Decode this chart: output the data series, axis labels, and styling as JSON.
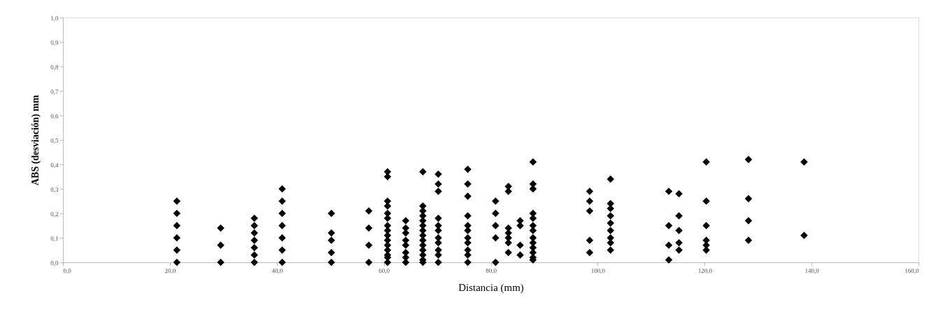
{
  "chart_data": {
    "type": "scatter",
    "xlabel": "Distancia (mm)",
    "ylabel": "ABS (desviación) mm",
    "marker": "diamond",
    "grid": false,
    "xlim": [
      0,
      160
    ],
    "ylim": [
      0,
      1
    ],
    "xticks": [
      {
        "value": 0,
        "label": "0,0"
      },
      {
        "value": 20,
        "label": "20,0"
      },
      {
        "value": 40,
        "label": "40,0"
      },
      {
        "value": 60,
        "label": "60,0"
      },
      {
        "value": 80,
        "label": "80,0"
      },
      {
        "value": 100,
        "label": "100,0"
      },
      {
        "value": 120,
        "label": "120,0"
      },
      {
        "value": 140,
        "label": "140,0"
      },
      {
        "value": 160,
        "label": "160,0"
      }
    ],
    "yticks": [
      {
        "value": 0,
        "label": "0,0"
      },
      {
        "value": 0.1,
        "label": "0,1"
      },
      {
        "value": 0.2,
        "label": "0,2"
      },
      {
        "value": 0.3,
        "label": "0,3"
      },
      {
        "value": 0.4,
        "label": "0,4"
      },
      {
        "value": 0.5,
        "label": "0,5"
      },
      {
        "value": 0.6,
        "label": "0,6"
      },
      {
        "value": 0.7,
        "label": "0,7"
      },
      {
        "value": 0.8,
        "label": "0,8"
      },
      {
        "value": 0.9,
        "label": "0,9"
      },
      {
        "value": 1,
        "label": "1,0"
      }
    ],
    "series": [
      {
        "color": "#000000",
        "x": [
          21.3,
          21.3,
          21.3,
          21.3,
          21.3,
          21.3,
          29.5,
          29.5,
          29.5,
          35.8,
          35.8,
          35.8,
          35.8,
          35.8,
          35.8,
          35.8,
          41,
          41,
          41,
          41,
          41,
          41,
          41,
          50.2,
          50.2,
          50.2,
          50.2,
          50.2,
          57.2,
          57.2,
          57.2,
          57.2,
          60.7,
          60.7,
          60.7,
          60.7,
          60.7,
          60.7,
          60.7,
          60.7,
          60.7,
          60.7,
          60.7,
          60.7,
          60.7,
          60.7,
          60.7,
          64.1,
          64.1,
          64.1,
          64.1,
          64.1,
          64.1,
          64.1,
          64.1,
          67.3,
          67.3,
          67.3,
          67.3,
          67.3,
          67.3,
          67.3,
          67.3,
          67.3,
          67.3,
          67.3,
          67.3,
          67.3,
          67.3,
          70.2,
          70.2,
          70.2,
          70.2,
          70.2,
          70.2,
          70.2,
          70.2,
          70.2,
          70.2,
          70.2,
          75.7,
          75.7,
          75.7,
          75.7,
          75.7,
          75.7,
          75.7,
          75.7,
          75.7,
          75.7,
          75.7,
          80.9,
          80.9,
          80.9,
          80.9,
          80.9,
          83.3,
          83.3,
          83.3,
          83.3,
          83.3,
          83.3,
          83.3,
          85.5,
          85.5,
          85.5,
          85.5,
          87.9,
          87.9,
          87.9,
          87.9,
          87.9,
          87.9,
          87.9,
          87.9,
          87.9,
          87.9,
          87.9,
          87.9,
          87.9,
          98.5,
          98.5,
          98.5,
          98.5,
          98.5,
          102.4,
          102.4,
          102.4,
          102.4,
          102.4,
          102.4,
          102.4,
          102.4,
          102.4,
          113.3,
          113.3,
          113.3,
          113.3,
          115.2,
          115.2,
          115.2,
          115.2,
          115.2,
          120.3,
          120.3,
          120.3,
          120.3,
          120.3,
          120.3,
          128.2,
          128.2,
          128.2,
          128.2,
          138.6,
          138.6
        ],
        "values": [
          0.25,
          0.2,
          0.15,
          0.1,
          0.05,
          0,
          0.14,
          0.07,
          0,
          0.18,
          0.15,
          0.12,
          0.09,
          0.06,
          0.03,
          0,
          0.3,
          0.25,
          0.2,
          0.15,
          0.1,
          0.05,
          0,
          0.2,
          0.12,
          0.09,
          0.04,
          0,
          0.21,
          0.14,
          0.07,
          0,
          0.37,
          0.35,
          0.25,
          0.23,
          0.2,
          0.18,
          0.15,
          0.13,
          0.11,
          0.09,
          0.07,
          0.05,
          0.03,
          0.02,
          0,
          0.17,
          0.14,
          0.12,
          0.09,
          0.07,
          0.04,
          0.02,
          0,
          0.37,
          0.23,
          0.21,
          0.19,
          0.17,
          0.15,
          0.13,
          0.11,
          0.09,
          0.07,
          0.05,
          0.03,
          0.01,
          0,
          0.36,
          0.32,
          0.29,
          0.18,
          0.15,
          0.13,
          0.1,
          0.08,
          0.05,
          0.03,
          0,
          0.38,
          0.32,
          0.27,
          0.19,
          0.15,
          0.13,
          0.1,
          0.08,
          0.05,
          0.03,
          0,
          0.25,
          0.2,
          0.15,
          0.1,
          0,
          0.31,
          0.29,
          0.14,
          0.12,
          0.1,
          0.08,
          0.04,
          0.17,
          0.15,
          0.07,
          0.03,
          0.41,
          0.32,
          0.3,
          0.2,
          0.18,
          0.15,
          0.13,
          0.1,
          0.08,
          0.06,
          0.04,
          0.02,
          0.01,
          0.29,
          0.25,
          0.21,
          0.09,
          0.04,
          0.34,
          0.24,
          0.22,
          0.19,
          0.16,
          0.13,
          0.1,
          0.08,
          0.05,
          0.29,
          0.15,
          0.07,
          0.01,
          0.28,
          0.19,
          0.13,
          0.08,
          0.05,
          0.41,
          0.25,
          0.15,
          0.09,
          0.07,
          0.05,
          0.42,
          0.26,
          0.17,
          0.09,
          0.41,
          0.11
        ]
      }
    ]
  }
}
